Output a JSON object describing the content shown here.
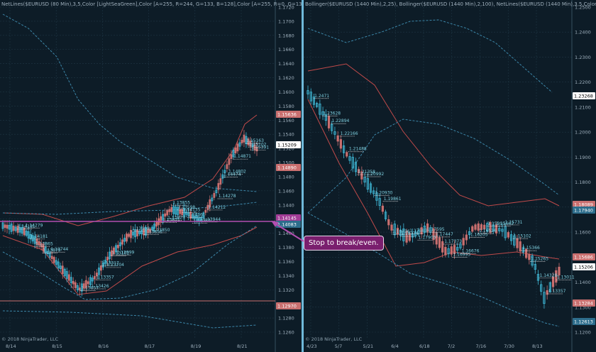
{
  "left_chart": {
    "title": "NetLines($EURUSD (80 Min),3,5,Color [LightSeaGreen],Color [A=255, R=244, G=133, B=128],Color [A=255, R=0, G=131",
    "copyright": "© 2018 NinjaTrader, LLC",
    "price_axis": [
      "1.1720",
      "1.1700",
      "1.1680",
      "1.1660",
      "1.1640",
      "1.1620",
      "1.1600",
      "1.1580",
      "1.1560",
      "1.1540",
      "1.1520",
      "1.1500",
      "1.1480",
      "1.1460",
      "1.1440",
      "1.1420",
      "1.1400",
      "1.1380",
      "1.1360",
      "1.1340",
      "1.1320",
      "1.1300",
      "1.1280",
      "1.1260"
    ],
    "date_axis": [
      "8/14",
      "8/15",
      "8/16",
      "8/17",
      "8/19",
      "8/21"
    ],
    "price_tags": [
      {
        "text": "1.15636",
        "bg": "#c96f6f",
        "fg": "#ffffff"
      },
      {
        "text": "1.15209",
        "bg": "#ffffff",
        "fg": "#000000"
      },
      {
        "text": "1.14890",
        "bg": "#c96f6f",
        "fg": "#ffffff"
      },
      {
        "text": "1.14145",
        "bg": "#a23d96",
        "fg": "#ffffff"
      },
      {
        "text": "1.14083",
        "bg": "#2d6d8c",
        "fg": "#ffffff"
      },
      {
        "text": "1.12970",
        "bg": "#c96f6f",
        "fg": "#ffffff"
      }
    ],
    "level_labels": [
      "1.15391",
      "1.15163",
      "1.15102",
      "1.14871",
      "1.14802",
      "1.14474",
      "1.14278",
      "1.14212",
      "1.14181",
      "1.14279",
      "1.14181",
      "1.13865",
      "1.13879",
      "1.13744",
      "1.13998",
      "1.13856",
      "1.13850",
      "1.13831",
      "1.13657",
      "1.13426",
      "1.13357",
      "1.13317",
      "1.13204",
      "1.13101",
      "1.12999",
      "1.14135",
      "1.14161",
      "1.14083",
      "1.13944",
      "1.13829",
      "1.13855",
      "1.13598"
    ]
  },
  "right_chart": {
    "title": "Bollinger($EURUSD (1440 Min),2,25), Bollinger($EURUSD (1440 Min),2,100), NetLines($EURUSD (1440 Min),3,5,Color",
    "copyright": "© 2018 NinjaTrader, LLC",
    "price_axis": [
      "1.2500",
      "1.2400",
      "1.2300",
      "1.2200",
      "1.2100",
      "1.2000",
      "1.1900",
      "1.1800",
      "1.1700",
      "1.1600",
      "1.1500",
      "1.1400",
      "1.1300",
      "1.1200"
    ],
    "date_axis": [
      "4/23",
      "5/7",
      "5/21",
      "6/4",
      "6/18",
      "7/2",
      "7/16",
      "7/30",
      "8/13"
    ],
    "price_tags": [
      {
        "text": "1.23268",
        "bg": "#ffffff",
        "fg": "#000000"
      },
      {
        "text": "1.18089",
        "bg": "#c96f6f",
        "fg": "#ffffff"
      },
      {
        "text": "1.17940",
        "bg": "#2d6d8c",
        "fg": "#ffffff"
      },
      {
        "text": "1.15686",
        "bg": "#c96f6f",
        "fg": "#ffffff"
      },
      {
        "text": "1.15206",
        "bg": "#ffffff",
        "fg": "#000000"
      },
      {
        "text": "1.13284",
        "bg": "#c96f6f",
        "fg": "#ffffff"
      },
      {
        "text": "1.12613",
        "bg": "#2d6d8c",
        "fg": "#ffffff"
      }
    ],
    "level_labels": [
      "1.2471",
      "1.23628",
      "1.22894",
      "1.22166",
      "1.21488",
      "1.21358",
      "1.20992",
      "1.20930",
      "1.19861",
      "1.18436",
      "1.18374",
      "1.17583",
      "1.17905",
      "1.17595",
      "1.17447",
      "1.17373",
      "1.16995",
      "1.16676",
      "1.16205",
      "1.16526",
      "1.15991",
      "1.15662",
      "1.15731",
      "1.15102",
      "1.15366",
      "1.15265",
      "1.14328",
      "1.13357",
      "1.13011"
    ]
  },
  "callout": {
    "text": "Stop to break/even."
  },
  "colors": {
    "bullish": "#3fb8d6",
    "bearish": "#c96f6f",
    "magenta": "#b24fb0",
    "grid": "#1f3644",
    "band_red": "#c04a4a",
    "band_blue": "#3c86a8"
  }
}
